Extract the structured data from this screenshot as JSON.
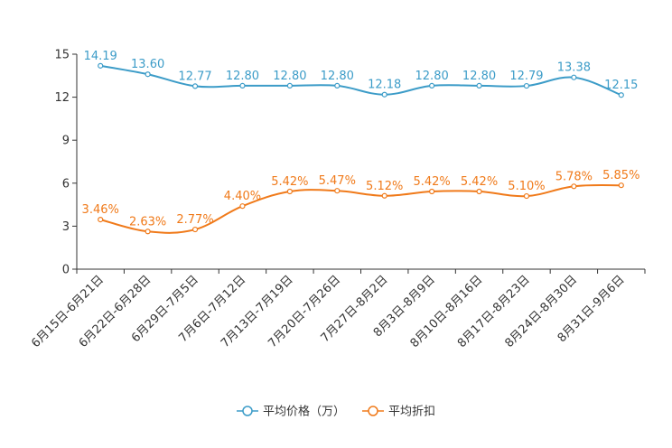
{
  "chart_data": {
    "type": "line",
    "categories": [
      "6月15日-6月21日",
      "6月22日-6月28日",
      "6月29日-7月5日",
      "7月6日-7月12日",
      "7月13日-7月19日",
      "7月20日-7月26日",
      "7月27日-8月2日",
      "8月3日-8月9日",
      "8月10日-8月16日",
      "8月17日-8月23日",
      "8月24日-8月30日",
      "8月31日-9月6日"
    ],
    "ylim": [
      0,
      15
    ],
    "yticks": [
      0,
      3,
      6,
      9,
      12,
      15
    ],
    "series": [
      {
        "name": "平均价格（万）",
        "color": "#3c9cc8",
        "values": [
          14.19,
          13.6,
          12.77,
          12.8,
          12.8,
          12.8,
          12.18,
          12.8,
          12.8,
          12.79,
          13.38,
          12.15
        ],
        "labels": [
          "14.19",
          "13.60",
          "12.77",
          "12.80",
          "12.80",
          "12.80",
          "12.18",
          "12.80",
          "12.80",
          "12.79",
          "13.38",
          "12.15"
        ]
      },
      {
        "name": "平均折扣",
        "color": "#f07a1a",
        "values": [
          3.46,
          2.63,
          2.77,
          4.4,
          5.42,
          5.47,
          5.12,
          5.42,
          5.42,
          5.1,
          5.78,
          5.85
        ],
        "labels": [
          "3.46%",
          "2.63%",
          "2.77%",
          "4.40%",
          "5.42%",
          "5.47%",
          "5.12%",
          "5.42%",
          "5.42%",
          "5.10%",
          "5.78%",
          "5.85%"
        ]
      }
    ],
    "legend": {
      "position": "bottom-center"
    },
    "grid": false
  }
}
